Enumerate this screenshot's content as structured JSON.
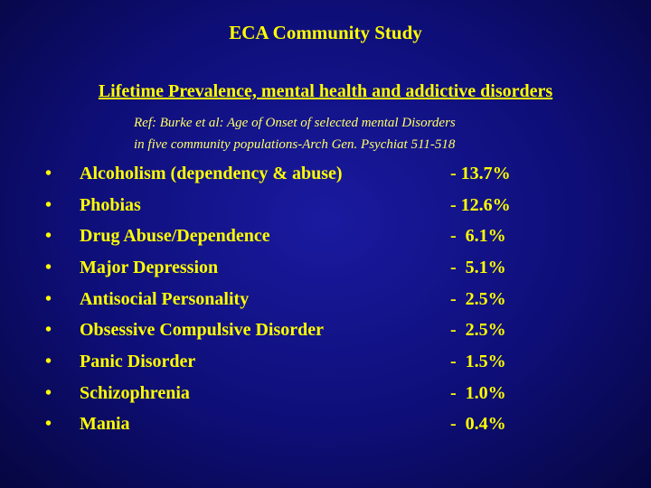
{
  "slide": {
    "title": "ECA Community Study",
    "subtitle": "Lifetime Prevalence, mental health and addictive disorders",
    "reference_line1": "Ref: Burke et al: Age of Onset of selected mental Disorders",
    "reference_line2": "in five community populations-Arch Gen. Psychiat 511-518"
  },
  "disorders": [
    {
      "bullet": "•",
      "name": "Alcoholism (dependency & abuse)",
      "value": "- 13.7%"
    },
    {
      "bullet": "•",
      "name": "Phobias",
      "value": "- 12.6%"
    },
    {
      "bullet": "•",
      "name": "Drug Abuse/Dependence",
      "value": "-  6.1%"
    },
    {
      "bullet": "•",
      "name": "Major Depression",
      "value": "-  5.1%"
    },
    {
      "bullet": "•",
      "name": "Antisocial Personality",
      "value": "-  2.5%"
    },
    {
      "bullet": "•",
      "name": "Obsessive Compulsive Disorder",
      "value": "-  2.5%"
    },
    {
      "bullet": "•",
      "name": "Panic Disorder",
      "value": "-  1.5%"
    },
    {
      "bullet": "•",
      "name": "Schizophrenia",
      "value": "-  1.0%"
    },
    {
      "bullet": "•",
      "name": "Mania",
      "value": "-  0.4%"
    }
  ],
  "colors": {
    "text": "#ffff00",
    "background": "#0e0e78"
  }
}
